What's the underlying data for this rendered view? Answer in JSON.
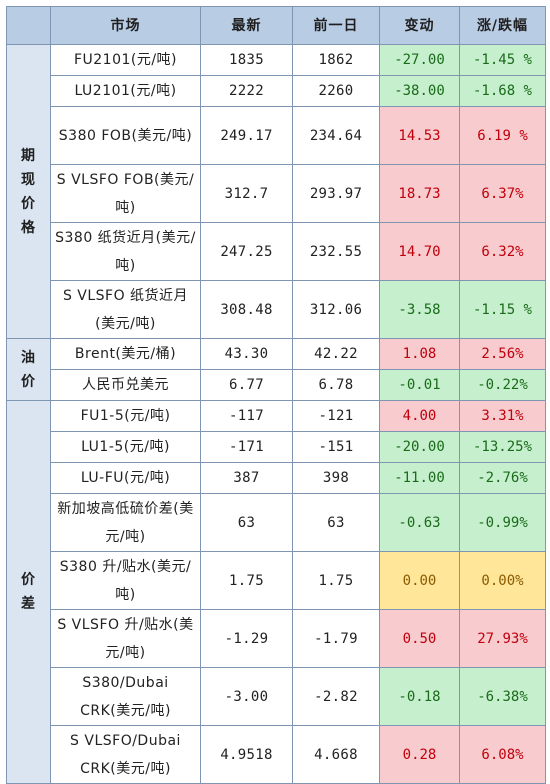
{
  "headers": [
    "",
    "市场",
    "最新",
    "前一日",
    "变动",
    "涨/跌幅"
  ],
  "groups": [
    {
      "label": "期现价格",
      "rows": [
        {
          "name": "FU2101(元/吨)",
          "latest": "1835",
          "prev": "1862",
          "change": "-27.00",
          "pct": "-1.45 %",
          "trend": "neg",
          "tall": false
        },
        {
          "name": "LU2101(元/吨)",
          "latest": "2222",
          "prev": "2260",
          "change": "-38.00",
          "pct": "-1.68 %",
          "trend": "neg",
          "tall": false
        },
        {
          "name": "S380 FOB(美元/吨)",
          "latest": "249.17",
          "prev": "234.64",
          "change": "14.53",
          "pct": "6.19 %",
          "trend": "pos",
          "tall": true
        },
        {
          "name": "S VLSFO FOB(美元/吨)",
          "latest": "312.7",
          "prev": "293.97",
          "change": "18.73",
          "pct": "6.37%",
          "trend": "pos",
          "tall": true
        },
        {
          "name": "S380 纸货近月(美元/吨)",
          "latest": "247.25",
          "prev": "232.55",
          "change": "14.70",
          "pct": "6.32%",
          "trend": "pos",
          "tall": true
        },
        {
          "name": "S VLSFO 纸货近月(美元/吨)",
          "latest": "308.48",
          "prev": "312.06",
          "change": "-3.58",
          "pct": "-1.15 %",
          "trend": "neg",
          "tall": true
        }
      ]
    },
    {
      "label": "油价",
      "rows": [
        {
          "name": "Brent(美元/桶)",
          "latest": "43.30",
          "prev": "42.22",
          "change": "1.08",
          "pct": "2.56%",
          "trend": "pos",
          "tall": false
        },
        {
          "name": "人民币兑美元",
          "latest": "6.77",
          "prev": "6.78",
          "change": "-0.01",
          "pct": "-0.22%",
          "trend": "neg",
          "tall": false
        }
      ]
    },
    {
      "label": "价差",
      "rows": [
        {
          "name": "FU1-5(元/吨)",
          "latest": "-117",
          "prev": "-121",
          "change": "4.00",
          "pct": "3.31%",
          "trend": "pos",
          "tall": false
        },
        {
          "name": "LU1-5(元/吨)",
          "latest": "-171",
          "prev": "-151",
          "change": "-20.00",
          "pct": "-13.25%",
          "trend": "neg",
          "tall": false
        },
        {
          "name": "LU-FU(元/吨)",
          "latest": "387",
          "prev": "398",
          "change": "-11.00",
          "pct": "-2.76%",
          "trend": "neg",
          "tall": false
        },
        {
          "name": "新加坡高低硫价差(美元/吨)",
          "latest": "63",
          "prev": "63",
          "change": "-0.63",
          "pct": "-0.99%",
          "trend": "neg",
          "tall": true
        },
        {
          "name": "S380 升/贴水(美元/吨)",
          "latest": "1.75",
          "prev": "1.75",
          "change": "0.00",
          "pct": "0.00%",
          "trend": "flat",
          "tall": true
        },
        {
          "name": "S VLSFO 升/贴水(美元/吨)",
          "latest": "-1.29",
          "prev": "-1.79",
          "change": "0.50",
          "pct": "27.93%",
          "trend": "pos",
          "tall": true
        },
        {
          "name": "S380/Dubai CRK(美元/吨)",
          "latest": "-3.00",
          "prev": "-2.82",
          "change": "-0.18",
          "pct": "-6.38%",
          "trend": "neg",
          "tall": true
        },
        {
          "name": "S VLSFO/Dubai CRK(美元/吨)",
          "latest": "4.9518",
          "prev": "4.668",
          "change": "0.28",
          "pct": "6.08%",
          "trend": "pos",
          "tall": true
        }
      ]
    }
  ],
  "colors": {
    "header_bg": "#b8cce4",
    "group_bg": "#dbe5f1",
    "up_bg": "#f8cbcf",
    "down_bg": "#c6efce",
    "flat_bg": "#ffe699"
  }
}
